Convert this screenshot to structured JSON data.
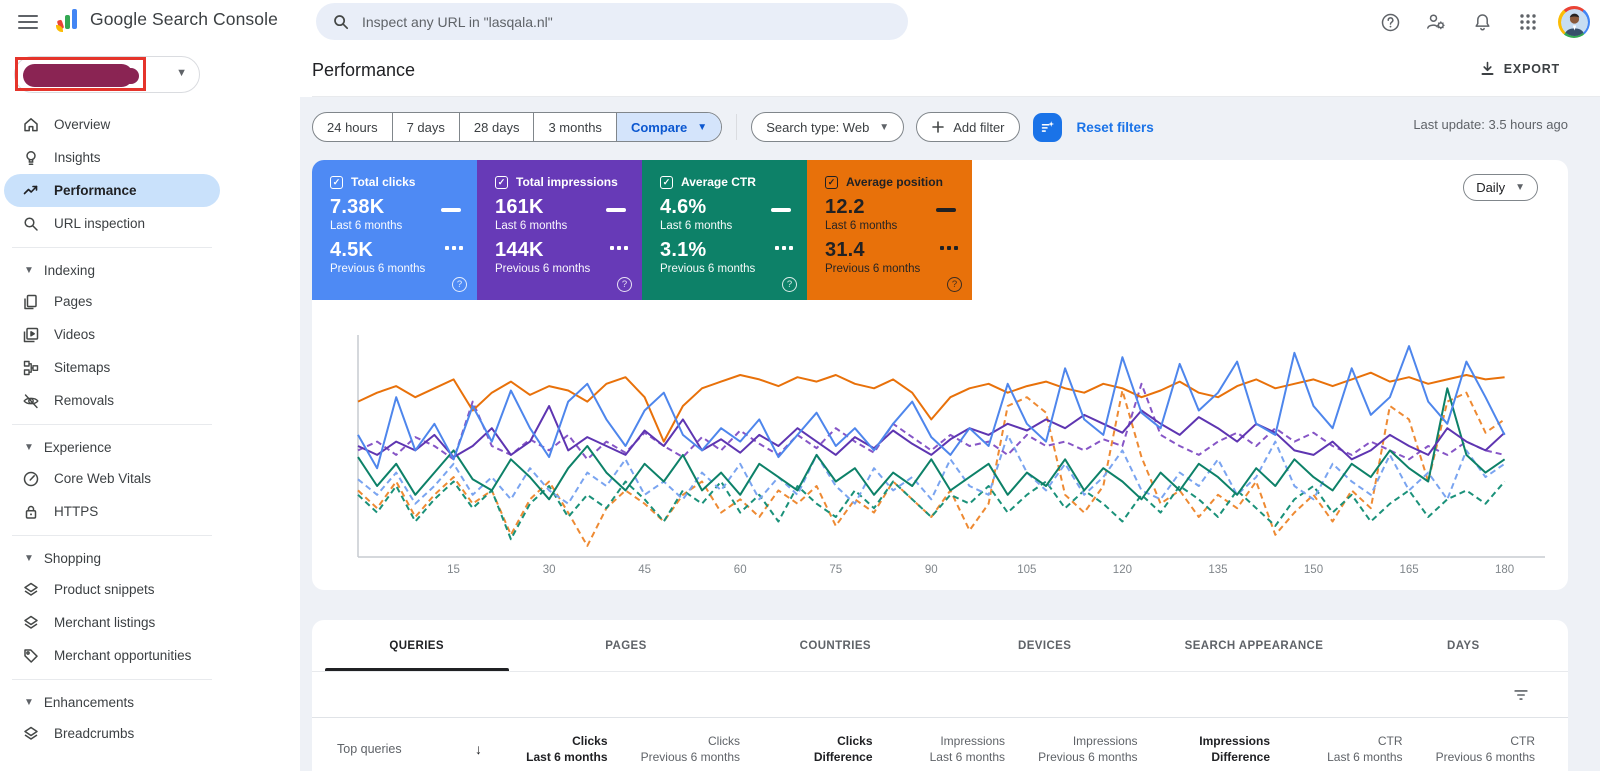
{
  "topbar": {
    "product_name": "Google Search Console",
    "search_placeholder": "Inspect any URL in \"lasqala.nl\""
  },
  "sidebar": {
    "property_selector": {
      "redacted": true
    },
    "main_items": [
      {
        "label": "Overview"
      },
      {
        "label": "Insights"
      },
      {
        "label": "Performance",
        "active": true
      },
      {
        "label": "URL inspection"
      }
    ],
    "sections": [
      {
        "label": "Indexing",
        "items": [
          {
            "label": "Pages"
          },
          {
            "label": "Videos"
          },
          {
            "label": "Sitemaps"
          },
          {
            "label": "Removals"
          }
        ]
      },
      {
        "label": "Experience",
        "items": [
          {
            "label": "Core Web Vitals"
          },
          {
            "label": "HTTPS"
          }
        ]
      },
      {
        "label": "Shopping",
        "items": [
          {
            "label": "Product snippets"
          },
          {
            "label": "Merchant listings"
          },
          {
            "label": "Merchant opportunities"
          }
        ]
      },
      {
        "label": "Enhancements",
        "items": [
          {
            "label": "Breadcrumbs"
          }
        ]
      }
    ]
  },
  "header": {
    "title": "Performance",
    "export_label": "EXPORT"
  },
  "filters": {
    "date_ranges": [
      "24 hours",
      "7 days",
      "28 days",
      "3 months"
    ],
    "compare_label": "Compare",
    "search_type_label": "Search type: Web",
    "add_filter_label": "Add filter",
    "reset_label": "Reset filters",
    "last_update": "Last update: 3.5 hours ago"
  },
  "metrics": {
    "cards": [
      {
        "label": "Total clicks",
        "current": "7.38K",
        "current_period": "Last 6 months",
        "previous": "4.5K",
        "previous_period": "Previous 6 months",
        "bg": "#4e8af4",
        "fg": "#ffffff"
      },
      {
        "label": "Total impressions",
        "current": "161K",
        "current_period": "Last 6 months",
        "previous": "144K",
        "previous_period": "Previous 6 months",
        "bg": "#673ab7",
        "fg": "#ffffff"
      },
      {
        "label": "Average CTR",
        "current": "4.6%",
        "current_period": "Last 6 months",
        "previous": "3.1%",
        "previous_period": "Previous 6 months",
        "bg": "#0d8168",
        "fg": "#ffffff"
      },
      {
        "label": "Average position",
        "current": "12.2",
        "current_period": "Last 6 months",
        "previous": "31.4",
        "previous_period": "Previous 6 months",
        "bg": "#e8710a",
        "fg": "#202124"
      }
    ]
  },
  "chart": {
    "interval_label": "Daily"
  },
  "chart_data": {
    "type": "line",
    "x_axis": "days (1-180, daily granularity)",
    "x_step_between_points": 3,
    "x_ticks": [
      15,
      30,
      45,
      60,
      75,
      90,
      105,
      120,
      135,
      150,
      165,
      180
    ],
    "y_note": "values are estimated percent of plot height (0 = bottom axis, 100 = top)",
    "grid": false,
    "series": [
      {
        "name": "Position previous 6 months",
        "color": "#ee8a33",
        "dashed": true,
        "values": [
          30,
          22,
          34,
          18,
          28,
          36,
          24,
          30,
          10,
          26,
          34,
          20,
          5,
          22,
          30,
          24,
          16,
          28,
          34,
          20,
          26,
          18,
          30,
          24,
          32,
          14,
          26,
          20,
          34,
          26,
          18,
          30,
          12,
          24,
          68,
          72,
          65,
          28,
          20,
          32,
          75,
          45,
          24,
          30,
          18,
          28,
          22,
          34,
          10,
          20,
          28,
          16,
          30,
          22,
          68,
          62,
          34,
          70,
          74,
          56,
          62
        ]
      },
      {
        "name": "CTR previous 6 months",
        "color": "#1a9179",
        "dashed": true,
        "values": [
          28,
          20,
          32,
          16,
          26,
          34,
          22,
          30,
          8,
          24,
          32,
          18,
          28,
          22,
          34,
          26,
          16,
          30,
          24,
          34,
          20,
          28,
          16,
          32,
          24,
          18,
          30,
          22,
          34,
          26,
          18,
          28,
          24,
          32,
          20,
          28,
          34,
          22,
          30,
          24,
          16,
          28,
          20,
          32,
          26,
          18,
          30,
          22,
          14,
          26,
          32,
          20,
          28,
          16,
          24,
          30,
          18,
          26,
          30,
          24,
          34
        ]
      },
      {
        "name": "Clicks previous 6 months",
        "color": "#7aa4f0",
        "dashed": true,
        "values": [
          35,
          28,
          38,
          24,
          32,
          42,
          28,
          36,
          26,
          40,
          30,
          24,
          38,
          32,
          44,
          28,
          34,
          26,
          38,
          30,
          42,
          26,
          36,
          28,
          46,
          32,
          24,
          40,
          30,
          36,
          26,
          44,
          32,
          28,
          55,
          38,
          30,
          42,
          28,
          36,
          48,
          30,
          26,
          38,
          32,
          44,
          28,
          36,
          52,
          32,
          26,
          42,
          34,
          28,
          46,
          30,
          38,
          26,
          48,
          36,
          42
        ]
      },
      {
        "name": "Impressions previous 6 months",
        "color": "#8655c6",
        "dashed": true,
        "values": [
          48,
          52,
          46,
          54,
          50,
          44,
          70,
          50,
          46,
          53,
          48,
          55,
          44,
          52,
          47,
          56,
          50,
          45,
          54,
          48,
          57,
          51,
          46,
          55,
          49,
          58,
          52,
          47,
          60,
          54,
          48,
          55,
          50,
          52,
          46,
          55,
          50,
          52,
          48,
          53,
          50,
          78,
          55,
          50,
          46,
          52,
          56,
          50,
          58,
          52,
          56,
          50,
          46,
          52,
          48,
          44,
          50,
          46,
          52,
          48,
          46
        ]
      },
      {
        "name": "CTR last 6 months",
        "color": "#0d8168",
        "dashed": false,
        "values": [
          45,
          32,
          42,
          28,
          38,
          48,
          35,
          30,
          44,
          36,
          26,
          40,
          50,
          38,
          30,
          42,
          34,
          46,
          30,
          38,
          28,
          42,
          36,
          30,
          46,
          34,
          40,
          28,
          38,
          32,
          44,
          30,
          36,
          42,
          28,
          38,
          32,
          44,
          30,
          40,
          34,
          26,
          38,
          30,
          42,
          36,
          28,
          40,
          32,
          44,
          36,
          30,
          42,
          36,
          48,
          40,
          34,
          76,
          46,
          38,
          44
        ]
      },
      {
        "name": "Impressions last 6 months",
        "color": "#5e35b1",
        "dashed": false,
        "values": [
          50,
          46,
          52,
          48,
          55,
          45,
          50,
          58,
          46,
          52,
          68,
          48,
          54,
          50,
          46,
          57,
          50,
          62,
          48,
          53,
          47,
          55,
          50,
          58,
          52,
          46,
          54,
          49,
          57,
          51,
          46,
          53,
          58,
          55,
          60,
          57,
          62,
          58,
          64,
          60,
          56,
          66,
          60,
          55,
          63,
          58,
          52,
          60,
          56,
          48,
          46,
          52,
          44,
          48,
          55,
          50,
          46,
          58,
          52,
          48,
          56
        ]
      },
      {
        "name": "Position last 6 months",
        "color": "#e8710a",
        "dashed": false,
        "values": [
          70,
          74,
          77,
          72,
          76,
          80,
          66,
          74,
          79,
          73,
          77,
          75,
          70,
          78,
          81,
          72,
          52,
          68,
          76,
          79,
          82,
          80,
          77,
          81,
          79,
          82,
          78,
          76,
          80,
          74,
          62,
          72,
          76,
          78,
          74,
          77,
          79,
          76,
          74,
          78,
          76,
          72,
          75,
          79,
          74,
          72,
          77,
          80,
          76,
          78,
          80,
          77,
          80,
          83,
          79,
          81,
          78,
          80,
          82,
          80,
          81
        ]
      },
      {
        "name": "Clicks last 6 months",
        "color": "#4e86ec",
        "dashed": false,
        "values": [
          55,
          40,
          72,
          48,
          60,
          44,
          68,
          52,
          75,
          58,
          45,
          70,
          78,
          62,
          50,
          66,
          74,
          55,
          48,
          58,
          52,
          62,
          45,
          55,
          65,
          50,
          58,
          48,
          60,
          70,
          54,
          46,
          58,
          50,
          78,
          60,
          52,
          85,
          62,
          55,
          90,
          65,
          58,
          87,
          66,
          74,
          88,
          60,
          55,
          92,
          68,
          58,
          85,
          64,
          72,
          95,
          70,
          60,
          88,
          72,
          55
        ]
      }
    ]
  },
  "tabs": {
    "items": [
      "QUERIES",
      "PAGES",
      "COUNTRIES",
      "DEVICES",
      "SEARCH APPEARANCE",
      "DAYS"
    ],
    "active": "QUERIES"
  },
  "table": {
    "first_column": "Top queries",
    "columns": [
      {
        "line1": "Clicks",
        "line2": "Last 6 months",
        "emphasis": true,
        "sorted": "desc"
      },
      {
        "line1": "Clicks",
        "line2": "Previous 6 months",
        "emphasis": false
      },
      {
        "line1": "Clicks",
        "line2": "Difference",
        "emphasis": true
      },
      {
        "line1": "Impressions",
        "line2": "Last 6 months",
        "emphasis": false
      },
      {
        "line1": "Impressions",
        "line2": "Previous 6 months",
        "emphasis": false
      },
      {
        "line1": "Impressions",
        "line2": "Difference",
        "emphasis": true
      },
      {
        "line1": "CTR",
        "line2": "Last 6 months",
        "emphasis": false
      },
      {
        "line1": "CTR",
        "line2": "Previous 6 months",
        "emphasis": false
      }
    ]
  },
  "colors": {
    "accent_blue": "#1a73e8",
    "compare_chip_bg": "#d4e4fb",
    "compare_chip_text": "#0b57d0",
    "sidebar_active_bg": "#c9e1fb",
    "content_bg": "#eef1f6",
    "redaction_fill": "#8a2453",
    "annotation_red": "#e5342b"
  }
}
